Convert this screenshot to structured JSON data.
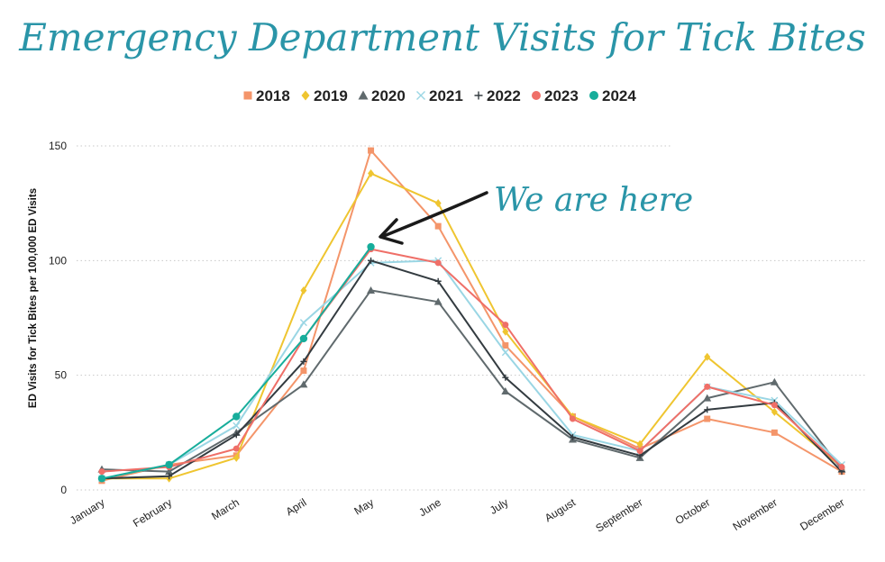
{
  "chart_data": {
    "type": "line",
    "title": "Emergency Department Visits for Tick Bites",
    "xlabel": "",
    "ylabel": "ED Visits for Tick Bites per 100,000 ED Visits",
    "ylim": [
      0,
      150
    ],
    "yticks": [
      0,
      50,
      100,
      150
    ],
    "grid": true,
    "legend_position": "top",
    "categories": [
      "January",
      "February",
      "March",
      "April",
      "May",
      "June",
      "July",
      "August",
      "September",
      "October",
      "November",
      "December"
    ],
    "series": [
      {
        "name": "2018",
        "color": "#f4956a",
        "marker": "square",
        "values": [
          4,
          11,
          15,
          52,
          148,
          115,
          63,
          32,
          18,
          31,
          25,
          8
        ]
      },
      {
        "name": "2019",
        "color": "#efc530",
        "marker": "diamond",
        "values": [
          5,
          5,
          14,
          87,
          138,
          125,
          69,
          32,
          20,
          58,
          34,
          10
        ]
      },
      {
        "name": "2020",
        "color": "#606a6d",
        "marker": "triangle",
        "values": [
          9,
          8,
          25,
          46,
          87,
          82,
          43,
          22,
          14,
          40,
          47,
          9
        ]
      },
      {
        "name": "2021",
        "color": "#9ad6e4",
        "marker": "x",
        "values": [
          5,
          11,
          28,
          73,
          99,
          100,
          60,
          24,
          17,
          45,
          39,
          11
        ]
      },
      {
        "name": "2022",
        "color": "#333b40",
        "marker": "plus",
        "values": [
          5,
          6,
          24,
          56,
          100,
          91,
          49,
          23,
          15,
          35,
          38,
          8
        ]
      },
      {
        "name": "2023",
        "color": "#ef6f68",
        "marker": "circle",
        "values": [
          8,
          10,
          18,
          66,
          105,
          99,
          72,
          31,
          17,
          45,
          37,
          10
        ]
      },
      {
        "name": "2024",
        "color": "#17ad9b",
        "marker": "circle",
        "values": [
          5,
          11,
          32,
          66,
          106,
          null,
          null,
          null,
          null,
          null,
          null,
          null
        ]
      }
    ],
    "annotation": {
      "text": "We are here",
      "color": "#2a95a8",
      "points_to": {
        "category": "May",
        "series": "2024",
        "value": 106
      }
    }
  }
}
